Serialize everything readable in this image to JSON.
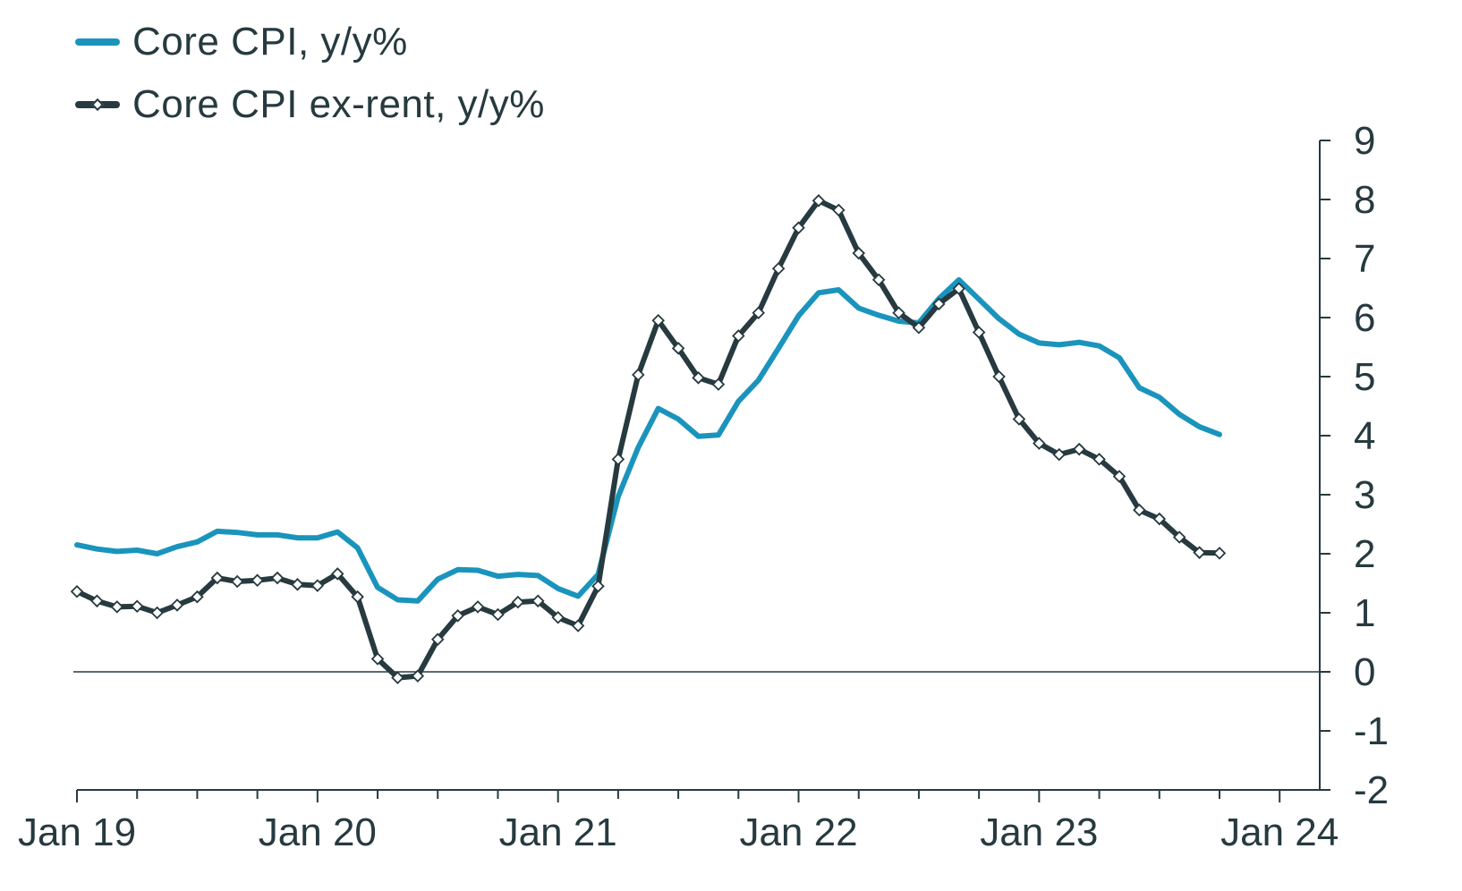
{
  "chart_data": {
    "type": "line",
    "title": "",
    "xlabel": "",
    "ylabel": "",
    "ylim": [
      -2,
      9
    ],
    "yticks": [
      "9",
      "8",
      "7",
      "6",
      "5",
      "4",
      "3",
      "2",
      "1",
      "0",
      "-1",
      "-2"
    ],
    "y_axis_side": "right",
    "x_tick_labels": [
      "Jan 19",
      "Jan 20",
      "Jan 21",
      "Jan 22",
      "Jan 23",
      "Jan 24"
    ],
    "x_range": [
      "2019-01",
      "2024-03"
    ],
    "grid": false,
    "zero_line": true,
    "legend_position": "top-left",
    "series": [
      {
        "name": "Core CPI, y/y%",
        "color": "#1a94bc",
        "marker": "none",
        "x": [
          "2019-01",
          "2019-02",
          "2019-03",
          "2019-04",
          "2019-05",
          "2019-06",
          "2019-07",
          "2019-08",
          "2019-09",
          "2019-10",
          "2019-11",
          "2019-12",
          "2020-01",
          "2020-02",
          "2020-03",
          "2020-04",
          "2020-05",
          "2020-06",
          "2020-07",
          "2020-08",
          "2020-09",
          "2020-10",
          "2020-11",
          "2020-12",
          "2021-01",
          "2021-02",
          "2021-03",
          "2021-04",
          "2021-05",
          "2021-06",
          "2021-07",
          "2021-08",
          "2021-09",
          "2021-10",
          "2021-11",
          "2021-12",
          "2022-01",
          "2022-02",
          "2022-03",
          "2022-04",
          "2022-05",
          "2022-06",
          "2022-07",
          "2022-08",
          "2022-09",
          "2022-10",
          "2022-11",
          "2022-12",
          "2023-01",
          "2023-02",
          "2023-03",
          "2023-04",
          "2023-05",
          "2023-06",
          "2023-07",
          "2023-08",
          "2023-09",
          "2023-10"
        ],
        "values": [
          2.15,
          2.08,
          2.04,
          2.06,
          2.0,
          2.12,
          2.2,
          2.38,
          2.36,
          2.32,
          2.32,
          2.27,
          2.27,
          2.37,
          2.1,
          1.43,
          1.22,
          1.2,
          1.57,
          1.73,
          1.72,
          1.62,
          1.65,
          1.63,
          1.41,
          1.28,
          1.65,
          2.97,
          3.8,
          4.46,
          4.28,
          3.99,
          4.01,
          4.58,
          4.94,
          5.48,
          6.03,
          6.42,
          6.47,
          6.16,
          6.04,
          5.94,
          5.91,
          6.32,
          6.64,
          6.31,
          5.98,
          5.72,
          5.57,
          5.54,
          5.58,
          5.52,
          5.32,
          4.81,
          4.65,
          4.36,
          4.15,
          4.02
        ]
      },
      {
        "name": "Core CPI ex-rent, y/y%",
        "color": "#263a3f",
        "marker": "diamond",
        "x": [
          "2019-01",
          "2019-02",
          "2019-03",
          "2019-04",
          "2019-05",
          "2019-06",
          "2019-07",
          "2019-08",
          "2019-09",
          "2019-10",
          "2019-11",
          "2019-12",
          "2020-01",
          "2020-02",
          "2020-03",
          "2020-04",
          "2020-05",
          "2020-06",
          "2020-07",
          "2020-08",
          "2020-09",
          "2020-10",
          "2020-11",
          "2020-12",
          "2021-01",
          "2021-02",
          "2021-03",
          "2021-04",
          "2021-05",
          "2021-06",
          "2021-07",
          "2021-08",
          "2021-09",
          "2021-10",
          "2021-11",
          "2021-12",
          "2022-01",
          "2022-02",
          "2022-03",
          "2022-04",
          "2022-05",
          "2022-06",
          "2022-07",
          "2022-08",
          "2022-09",
          "2022-10",
          "2022-11",
          "2022-12",
          "2023-01",
          "2023-02",
          "2023-03",
          "2023-04",
          "2023-05",
          "2023-06",
          "2023-07",
          "2023-08",
          "2023-09",
          "2023-10"
        ],
        "values": [
          1.36,
          1.2,
          1.1,
          1.11,
          1.0,
          1.13,
          1.27,
          1.59,
          1.53,
          1.55,
          1.59,
          1.48,
          1.46,
          1.66,
          1.27,
          0.22,
          -0.1,
          -0.07,
          0.55,
          0.95,
          1.1,
          0.97,
          1.18,
          1.2,
          0.92,
          0.78,
          1.45,
          3.6,
          5.03,
          5.95,
          5.48,
          4.98,
          4.87,
          5.69,
          6.08,
          6.83,
          7.52,
          7.98,
          7.82,
          7.09,
          6.64,
          6.08,
          5.83,
          6.23,
          6.49,
          5.75,
          5.0,
          4.28,
          3.87,
          3.68,
          3.77,
          3.6,
          3.31,
          2.74,
          2.59,
          2.28,
          2.02,
          2.01
        ]
      }
    ]
  }
}
